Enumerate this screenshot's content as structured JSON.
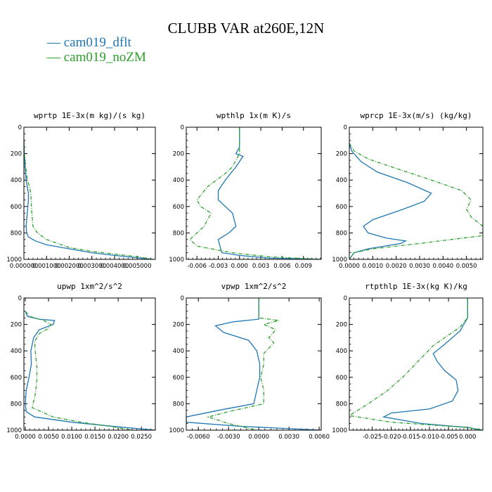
{
  "title": "CLUBB VAR at260E,12N",
  "legend": [
    {
      "name": "cam019_dflt",
      "color": "#1f77b4"
    },
    {
      "name": "cam019_noZM",
      "color": "#2ca02c"
    }
  ],
  "chart_data": [
    {
      "type": "line",
      "title": "wprtp  1E-3x(m kg)/(s kg)",
      "xlim": [
        0,
        0.0058
      ],
      "ylim": [
        1000,
        0
      ],
      "xticks": [
        0,
        0.001,
        0.002,
        0.003,
        0.004,
        0.005
      ],
      "xtick_labels": [
        "0.000000",
        "0.001000",
        "0.002000",
        "0.003000",
        "0.004000",
        "0.005000"
      ],
      "yticks": [
        0,
        200,
        400,
        600,
        800,
        1000
      ],
      "ytick_labels": [
        "0",
        "200",
        "400",
        "600",
        "800",
        "1000"
      ],
      "series": [
        {
          "name": "cam019_dflt",
          "color": "#1f77b4",
          "dash": "",
          "x": [
            0.0,
            2e-05,
            5e-05,
            0.0001,
            0.00015,
            0.0002,
            0.0002,
            0.00015,
            0.0001,
            0.00012,
            0.0002,
            0.0005,
            0.001,
            0.002,
            0.003,
            0.004,
            0.0051,
            0.0057
          ],
          "y": [
            100,
            200,
            300,
            400,
            450,
            500,
            550,
            650,
            750,
            800,
            830,
            860,
            890,
            920,
            950,
            970,
            990,
            1000
          ]
        },
        {
          "name": "cam019_noZM",
          "color": "#2ca02c",
          "dash": "5,2,1,2",
          "x": [
            0.0,
            2e-05,
            8e-05,
            0.00015,
            0.00025,
            0.0003,
            0.00032,
            0.00035,
            0.0004,
            0.0006,
            0.001,
            0.0015,
            0.002,
            0.003,
            0.004,
            0.005,
            0.0057
          ],
          "y": [
            100,
            200,
            300,
            400,
            450,
            500,
            550,
            650,
            750,
            800,
            850,
            880,
            910,
            940,
            960,
            980,
            1000
          ]
        }
      ]
    },
    {
      "type": "line",
      "title": "wpthlp  1x(m K)/s",
      "xlim": [
        -0.0075,
        0.0115
      ],
      "ylim": [
        1000,
        0
      ],
      "xticks": [
        -0.006,
        -0.003,
        0,
        0.003,
        0.006,
        0.009
      ],
      "xtick_labels": [
        "-0.006",
        "-0.003",
        "0.000",
        "0.003",
        "0.006",
        "0.009"
      ],
      "yticks": [
        0,
        200,
        400,
        600,
        800,
        1000
      ],
      "ytick_labels": [
        "0",
        "200",
        "400",
        "600",
        "800",
        "1000"
      ],
      "series": [
        {
          "name": "cam019_dflt",
          "color": "#1f77b4",
          "dash": "",
          "x": [
            0.0,
            0.0,
            -0.0005,
            0.0005,
            -0.0005,
            -0.002,
            -0.003,
            -0.003,
            -0.001,
            -0.0005,
            -0.0015,
            -0.003,
            -0.0025,
            0.0,
            0.004,
            0.0115
          ],
          "y": [
            0,
            150,
            200,
            220,
            300,
            400,
            480,
            550,
            650,
            750,
            800,
            850,
            950,
            970,
            990,
            1000
          ]
        },
        {
          "name": "cam019_noZM",
          "color": "#2ca02c",
          "dash": "5,2,1,2",
          "x": [
            0.0,
            0.0,
            0.0,
            -0.0005,
            -0.001,
            -0.002,
            -0.0045,
            -0.006,
            -0.0055,
            -0.004,
            -0.005,
            -0.007,
            -0.006,
            -0.001,
            0.004,
            0.0115
          ],
          "y": [
            0,
            150,
            200,
            250,
            300,
            350,
            450,
            550,
            600,
            650,
            750,
            850,
            900,
            950,
            980,
            1000
          ]
        }
      ]
    },
    {
      "type": "line",
      "title": "wprcp  1E-3x(m/s) (kg/kg)",
      "xlim": [
        0,
        0.0057
      ],
      "ylim": [
        1000,
        0
      ],
      "xticks": [
        0,
        0.001,
        0.002,
        0.003,
        0.004,
        0.005
      ],
      "xtick_labels": [
        "0.0000",
        "0.0010",
        "0.0020",
        "0.0030",
        "0.0040",
        "0.0050"
      ],
      "yticks": [
        0,
        200,
        400,
        600,
        800,
        1000
      ],
      "ytick_labels": [
        "0",
        "200",
        "400",
        "600",
        "800",
        "1000"
      ],
      "series": [
        {
          "name": "cam019_dflt",
          "color": "#1f77b4",
          "dash": "",
          "x": [
            0.0,
            0.0001,
            0.0005,
            0.0012,
            0.0025,
            0.0035,
            0.0032,
            0.0023,
            0.001,
            0.0006,
            0.0008,
            0.0016,
            0.0024,
            0.0022,
            0.0008,
            0.0002,
            0.0
          ],
          "y": [
            120,
            180,
            260,
            340,
            420,
            500,
            560,
            620,
            700,
            750,
            800,
            840,
            860,
            880,
            920,
            950,
            1000
          ]
        },
        {
          "name": "cam019_noZM",
          "color": "#2ca02c",
          "dash": "5,2,1,2",
          "x": [
            0.0,
            0.0002,
            0.0008,
            0.0018,
            0.0035,
            0.0048,
            0.0052,
            0.005,
            0.0052,
            0.0057,
            0.0057,
            0.003,
            0.001,
            0.0002,
            0.0
          ],
          "y": [
            120,
            180,
            240,
            300,
            400,
            480,
            550,
            620,
            680,
            750,
            820,
            880,
            920,
            950,
            1000
          ]
        }
      ]
    },
    {
      "type": "line",
      "title": "upwp  1xm^2/s^2",
      "xlim": [
        -0.0003,
        0.028
      ],
      "ylim": [
        1000,
        0
      ],
      "xticks": [
        0,
        0.005,
        0.01,
        0.015,
        0.02,
        0.025
      ],
      "xtick_labels": [
        "0.0000",
        "0.0050",
        "0.0100",
        "0.0150",
        "0.0200",
        "0.0250"
      ],
      "yticks": [
        0,
        200,
        400,
        600,
        800,
        1000
      ],
      "ytick_labels": [
        "0",
        "200",
        "400",
        "600",
        "800",
        "1000"
      ],
      "series": [
        {
          "name": "cam019_dflt",
          "color": "#1f77b4",
          "dash": "",
          "x": [
            0.0,
            0.0005,
            0.003,
            0.0063,
            0.006,
            0.003,
            0.0018,
            0.0012,
            0.0013,
            0.0008,
            0.0002,
            0.0,
            0.0002,
            0.002,
            0.01,
            0.02,
            0.028
          ],
          "y": [
            100,
            140,
            160,
            170,
            200,
            240,
            300,
            400,
            500,
            600,
            700,
            800,
            860,
            900,
            940,
            975,
            1000
          ]
        },
        {
          "name": "cam019_noZM",
          "color": "#2ca02c",
          "dash": "5,2,1,2",
          "x": [
            0.0,
            0.001,
            0.004,
            0.0055,
            0.005,
            0.003,
            0.002,
            0.0022,
            0.0025,
            0.0025,
            0.0022,
            0.0015,
            0.006,
            0.012,
            0.018,
            0.023
          ],
          "y": [
            100,
            140,
            170,
            200,
            230,
            270,
            330,
            420,
            520,
            620,
            720,
            830,
            900,
            940,
            970,
            1000
          ]
        }
      ]
    },
    {
      "type": "line",
      "title": "vpwp  1xm^2/s^2",
      "xlim": [
        -0.0072,
        0.0062
      ],
      "ylim": [
        1000,
        0
      ],
      "xticks": [
        -0.006,
        -0.003,
        0,
        0.003,
        0.006
      ],
      "xtick_labels": [
        "-0.0060",
        "-0.0030",
        "0.0000",
        "0.0030",
        "0.0060"
      ],
      "yticks": [
        0,
        200,
        400,
        600,
        800,
        1000
      ],
      "ytick_labels": [
        "0",
        "200",
        "400",
        "600",
        "800",
        "1000"
      ],
      "series": [
        {
          "name": "cam019_dflt",
          "color": "#1f77b4",
          "dash": "",
          "x": [
            0.0,
            0.0,
            -0.0025,
            -0.0043,
            -0.0035,
            -0.001,
            -0.0002,
            0.0001,
            0.0001,
            -0.0002,
            -0.0005,
            -0.004,
            -0.0072,
            -0.0072,
            -0.002,
            0.0062
          ],
          "y": [
            0,
            160,
            180,
            210,
            260,
            320,
            400,
            500,
            600,
            700,
            800,
            850,
            900,
            940,
            970,
            1000
          ]
        },
        {
          "name": "cam019_noZM",
          "color": "#2ca02c",
          "dash": "5,2,1,2",
          "x": [
            0.0,
            0.0,
            0.002,
            0.0005,
            0.0017,
            0.001,
            0.0015,
            0.001,
            0.0005,
            0.0005,
            0.0002,
            0.0005,
            0.0005,
            -0.003,
            -0.005,
            -0.003,
            -0.0002
          ],
          "y": [
            0,
            150,
            170,
            200,
            240,
            300,
            340,
            380,
            420,
            500,
            600,
            700,
            800,
            860,
            900,
            950,
            1000
          ]
        }
      ]
    },
    {
      "type": "line",
      "title": "rtpthlp  1E-3x(kg K)/kg",
      "xlim": [
        -0.031,
        0.004
      ],
      "ylim": [
        1000,
        0
      ],
      "xticks": [
        -0.025,
        -0.02,
        -0.015,
        -0.01,
        -0.005,
        0
      ],
      "xtick_labels": [
        "-0.025",
        "-0.020",
        "-0.015",
        "-0.010",
        "-0.005",
        "0.000"
      ],
      "yticks": [
        0,
        200,
        400,
        600,
        800,
        1000
      ],
      "ytick_labels": [
        "0",
        "200",
        "400",
        "600",
        "800",
        "1000"
      ],
      "series": [
        {
          "name": "cam019_dflt",
          "color": "#1f77b4",
          "dash": "",
          "x": [
            0.0,
            0.0,
            -0.002,
            -0.006,
            -0.009,
            -0.008,
            -0.006,
            -0.003,
            -0.0025,
            -0.004,
            -0.01,
            -0.02,
            -0.022,
            -0.012,
            0.0,
            0.004
          ],
          "y": [
            0,
            150,
            250,
            350,
            420,
            480,
            550,
            620,
            700,
            780,
            840,
            870,
            900,
            950,
            980,
            1000
          ]
        },
        {
          "name": "cam019_noZM",
          "color": "#2ca02c",
          "dash": "5,2,1,2",
          "x": [
            0.0,
            0.0,
            -0.002,
            -0.006,
            -0.009,
            -0.011,
            -0.013,
            -0.015,
            -0.017,
            -0.021,
            -0.026,
            -0.031,
            -0.02,
            0.0,
            0.004
          ],
          "y": [
            0,
            150,
            220,
            300,
            360,
            420,
            480,
            540,
            600,
            700,
            800,
            890,
            940,
            980,
            1000
          ]
        }
      ]
    }
  ]
}
